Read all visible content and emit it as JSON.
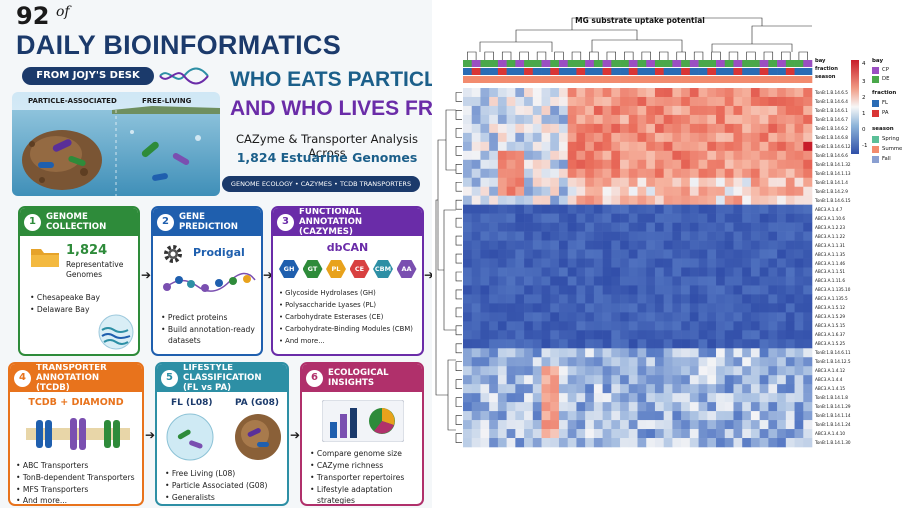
{
  "header": {
    "issue_number": "92",
    "issue_of": "of",
    "title": "DAILY BIOINFORMATICS",
    "from_label": "FROM JOJY'S DESK",
    "scene_left_label": "PARTICLE-ASSOCIATED",
    "scene_right_label": "FREE-LIVING",
    "headline_line1": "WHO EATS PARTICLES",
    "headline_line2": "AND WHO LIVES FREE?",
    "subtitle_line1": "CAZyme & Transporter Analysis Across",
    "subtitle_line2": "1,824 Estuarine Genomes",
    "tags": "GENOME ECOLOGY  •  CAZYMES  •  TCDB TRANSPORTERS"
  },
  "colors": {
    "navy": "#1b3a6b",
    "green": "#2e8b3a",
    "blue": "#1f5fae",
    "purple": "#6a2ca8",
    "orange": "#e8731c",
    "teal": "#2d8fa5",
    "magenta": "#b0306b"
  },
  "cards": [
    {
      "num": "1",
      "title": "GENOME COLLECTION",
      "big_number": "1,824",
      "big_text_1": "Representative",
      "big_text_2": "Genomes",
      "bullets": [
        "Chesapeake Bay",
        "Delaware Bay"
      ],
      "icon": "folder-icon"
    },
    {
      "num": "2",
      "title": "GENE PREDICTION",
      "tool": "Prodigal",
      "bullets": [
        "Predict proteins",
        "Build annotation-ready",
        "datasets"
      ],
      "icon": "gear-icon"
    },
    {
      "num": "3",
      "title_1": "FUNCTIONAL ANNOTATION",
      "title_2": "(CAZYMES)",
      "tool": "dbCAN",
      "hexes": [
        "GH",
        "GT",
        "PL",
        "CE",
        "CBM",
        "AA"
      ],
      "hex_colors": [
        "#1f5fae",
        "#2e8b3a",
        "#e8a21c",
        "#d84040",
        "#2d8fa5",
        "#7a4fb0"
      ],
      "bullets": [
        "Glycoside Hydrolases (GH)",
        "Polysaccharide Lyases (PL)",
        "Carbohydrate Esterases (CE)",
        "Carbohydrate-Binding Modules (CBM)",
        "And more..."
      ]
    },
    {
      "num": "4",
      "title_1": "TRANSPORTER ANNOTATION",
      "title_2": "(TCDB)",
      "tool": "TCDB + DIAMOND",
      "bullets": [
        "ABC Transporters",
        "TonB-dependent Transporters",
        "MFS Transporters",
        "And more..."
      ]
    },
    {
      "num": "5",
      "title_1": "LIFESTYLE CLASSIFICATION",
      "title_2": "(FL vs PA)",
      "fl_label": "FL (L08)",
      "pa_label": "PA (G08)",
      "bullets": [
        "Free Living (L08)",
        "Particle Associated (G08)",
        "Generalists"
      ]
    },
    {
      "num": "6",
      "title": "ECOLOGICAL INSIGHTS",
      "bullets": [
        "Compare genome size",
        "CAZyme richness",
        "Transporter repertoires",
        "Lifestyle adaptation",
        "strategies"
      ]
    }
  ],
  "heatmap": {
    "title": "MG substrate uptake potential",
    "annotation_rows": [
      "bay",
      "fraction",
      "season"
    ],
    "row_labels": [
      "TonB:1.B.14.6.5",
      "TonB:1.B.14.6.4",
      "TonB:1.B.14.6.1",
      "TonB:1.B.14.6.7",
      "TonB:1.B.14.6.2",
      "TonB:1.B.14.6.8",
      "TonB:1.B.14.6.12",
      "TonB:1.B.14.6.6",
      "TonB:1.B.14.1.32",
      "TonB:1.B.14.1.13",
      "TonB:1.B.14.1.4",
      "TonB:1.B.14.2.9",
      "TonB:1.B.14.6.15",
      "ABC3.A.1.4.7",
      "ABC3.A.1.10.6",
      "ABC3.A.1.2.23",
      "ABC3.A.1.1.22",
      "ABC3.A.1.1.31",
      "ABC3.A.1.1.35",
      "ABC3.A.1.1.46",
      "ABC3.A.1.1.51",
      "ABC3.A.1.11.6",
      "ABC3.A.1.135.10",
      "ABC3.A.1.135.5",
      "ABC3.A.1.5.12",
      "ABC3.A.1.5.29",
      "ABC3.A.1.5.15",
      "ABC3.A.1.6.37",
      "ABC3.A.1.5.25",
      "TonB:1.B.14.6.11",
      "TonB:1.B.14.12.5",
      "ABC3.A.1.4.12",
      "ABC3.A.1.4.4",
      "ABC3.A.1.4.15",
      "TonB:1.B.14.1.8",
      "TonB:1.B.14.1.29",
      "TonB:1.B.14.1.14",
      "TonB:1.B.14.1.24",
      "ABC3.A.1.4.10",
      "TonB:1.B.14.1.30"
    ],
    "scale_ticks": [
      "4",
      "3",
      "2",
      "1",
      "0",
      "-1"
    ],
    "legend": {
      "bay_title": "bay",
      "bay_items": [
        {
          "label": "CP",
          "color": "#9b4fc2"
        },
        {
          "label": "DE",
          "color": "#4aa84a"
        }
      ],
      "fraction_title": "fraction",
      "fraction_items": [
        {
          "label": "FL",
          "color": "#2a6cb5"
        },
        {
          "label": "PA",
          "color": "#d93535"
        }
      ],
      "season_title": "season",
      "season_items": [
        {
          "label": "Spring",
          "color": "#5bbf98"
        },
        {
          "label": "Summe",
          "color": "#f28b6e"
        },
        {
          "label": "Fall",
          "color": "#8a9fd1"
        }
      ]
    }
  }
}
